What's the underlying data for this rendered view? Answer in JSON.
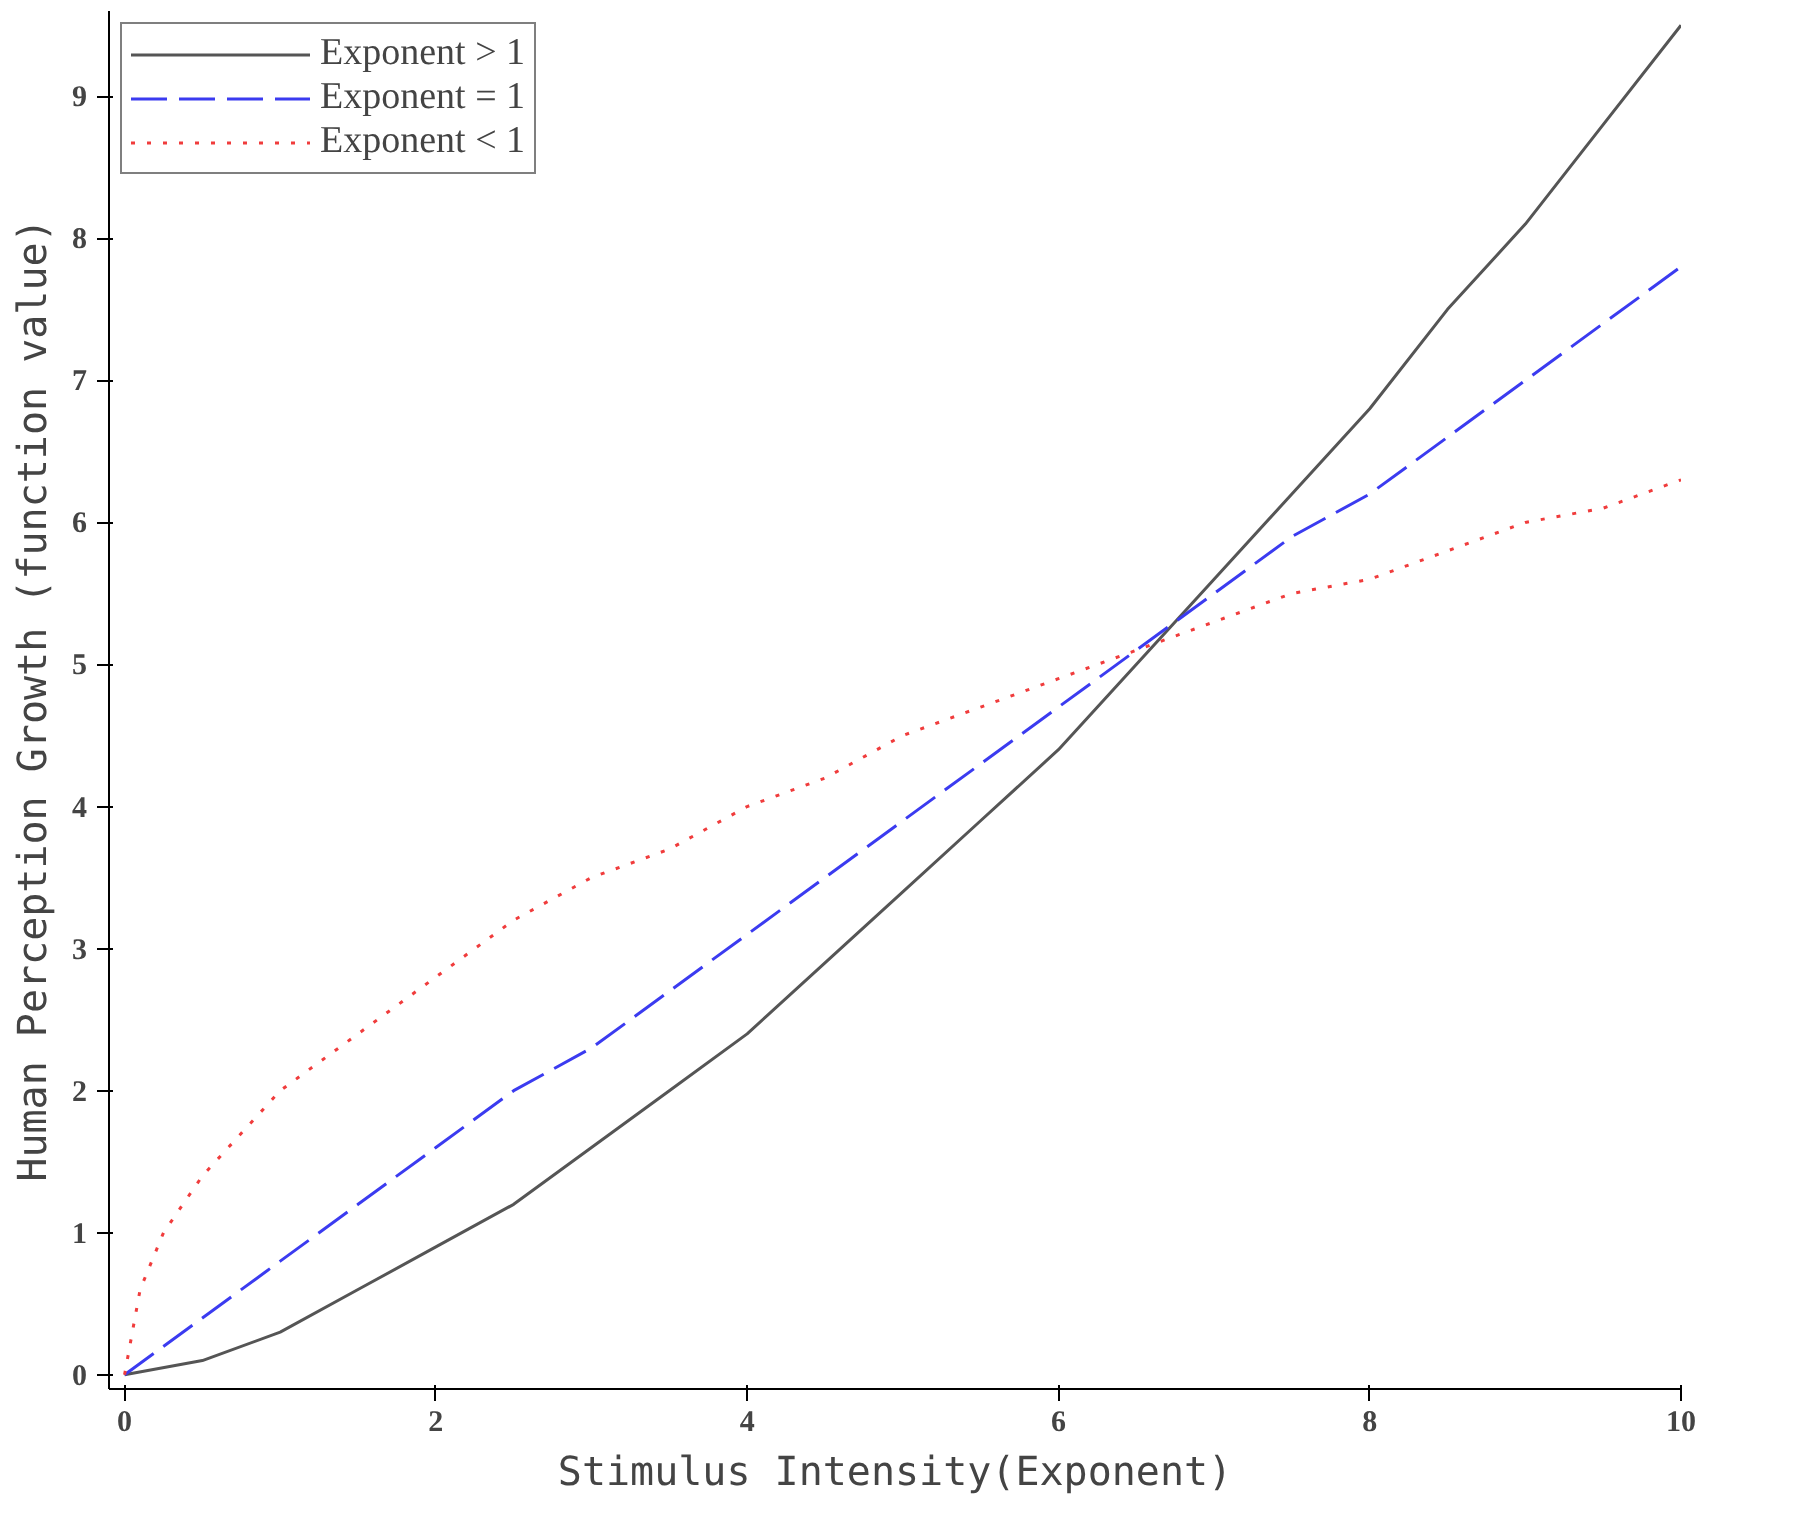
{
  "chart_data": {
    "type": "line",
    "xlabel": "Stimulus Intensity(Exponent)",
    "ylabel": "Human Perception Growth (function value)",
    "x": [
      0,
      0.5,
      1,
      1.5,
      2,
      2.5,
      3,
      3.5,
      4,
      4.5,
      5,
      5.5,
      6,
      6.5,
      7,
      7.5,
      8,
      8.5,
      9,
      9.5,
      10
    ],
    "series": [
      {
        "name": "Exponent > 1",
        "color": "#555555",
        "line_style": "solid",
        "values": [
          0,
          0.1,
          0.3,
          0.6,
          0.9,
          1.2,
          1.6,
          2.0,
          2.4,
          2.9,
          3.4,
          3.9,
          4.4,
          5.0,
          5.6,
          6.2,
          6.8,
          7.5,
          8.1,
          8.8,
          9.5
        ]
      },
      {
        "name": "Exponent = 1",
        "color": "#3b3bf0",
        "line_style": "dashed",
        "values": [
          0,
          0.4,
          0.8,
          1.2,
          1.6,
          2.0,
          2.3,
          2.7,
          3.1,
          3.5,
          3.9,
          4.3,
          4.7,
          5.1,
          5.5,
          5.9,
          6.2,
          6.6,
          7.0,
          7.4,
          7.8
        ]
      },
      {
        "name": "Exponent < 1",
        "color": "#f03c3c",
        "line_style": "dotted",
        "x": [
          0,
          0.1,
          0.25,
          0.5,
          1,
          1.5,
          2,
          2.5,
          3,
          3.5,
          4,
          4.5,
          5,
          5.5,
          6,
          6.5,
          7,
          7.5,
          8,
          8.5,
          9,
          9.5,
          10
        ],
        "values": [
          0,
          0.6,
          1.0,
          1.4,
          2.0,
          2.4,
          2.8,
          3.2,
          3.5,
          3.7,
          4.0,
          4.2,
          4.5,
          4.7,
          4.9,
          5.1,
          5.3,
          5.5,
          5.6,
          5.8,
          6.0,
          6.1,
          6.3
        ]
      }
    ],
    "xlim": [
      -0.1,
      10
    ],
    "ylim": [
      -0.1,
      9.6
    ],
    "xticks": [
      0,
      2,
      4,
      6,
      8,
      10
    ],
    "yticks": [
      0,
      1,
      2,
      3,
      4,
      5,
      6,
      7,
      8,
      9
    ],
    "grid": false,
    "legend": "top left"
  }
}
